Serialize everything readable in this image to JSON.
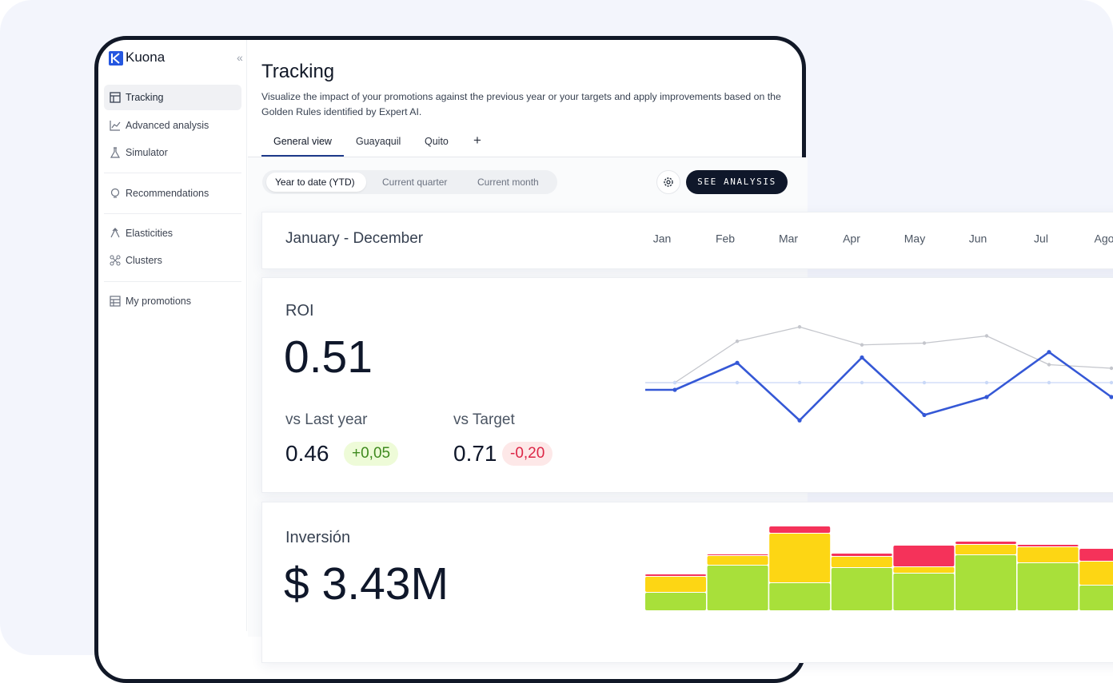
{
  "sidebar": {
    "brand": "Kuona",
    "collapse": "«",
    "nav": [
      "Tracking",
      "Advanced analysis",
      "Simulator",
      "Recommendations",
      "Elasticities",
      "Clusters",
      "My promotions"
    ]
  },
  "header": {
    "title": "Tracking",
    "description": "Visualize the impact of your promotions against the previous year or your targets and apply improvements based on the Golden Rules identified by Expert AI."
  },
  "tabs": [
    "General view",
    "Guayaquil",
    "Quito",
    "+"
  ],
  "periods": [
    "Year to date (YTD)",
    "Current quarter",
    "Current month"
  ],
  "action": "SEE ANALYSIS",
  "range": "January - December",
  "roi": {
    "label": "ROI",
    "value": "0.51",
    "vs_last_year": {
      "label": "vs Last year",
      "value": "0.46",
      "delta": "+0,05"
    },
    "vs_target": {
      "label": "vs Target",
      "value": "0.71",
      "delta": "-0,20"
    }
  },
  "investment": {
    "label": "Inversión",
    "value": "$ 3.43M"
  },
  "chart_data": [
    {
      "type": "line",
      "categories": [
        "Jan",
        "Feb",
        "Mar",
        "Apr",
        "May",
        "Jun",
        "Jul",
        "Ago"
      ],
      "ylim": [
        0.3,
        1.1
      ],
      "series": [
        {
          "color": "#c4c6cc",
          "values": [
            0.66,
            0.89,
            0.97,
            0.87,
            0.88,
            0.92,
            0.76,
            0.74
          ]
        },
        {
          "color": "#c9d8f7",
          "values": [
            0.66,
            0.66,
            0.66,
            0.66,
            0.66,
            0.66,
            0.66,
            0.66
          ]
        },
        {
          "color": "#3558d6",
          "values": [
            0.62,
            0.77,
            0.45,
            0.8,
            0.48,
            0.58,
            0.83,
            0.58
          ]
        }
      ]
    },
    {
      "type": "stacked-bar",
      "ylim": [
        0,
        110
      ],
      "series": [
        {
          "color": "#a8e03a",
          "values": [
            23,
            57,
            35,
            54,
            47,
            70,
            60,
            32
          ]
        },
        {
          "color": "#fdd614",
          "values": [
            20,
            12,
            62,
            14,
            8,
            13,
            20,
            30
          ]
        },
        {
          "color": "#f5325a",
          "values": [
            3,
            2,
            9,
            4,
            27,
            4,
            3,
            16
          ]
        }
      ]
    }
  ]
}
